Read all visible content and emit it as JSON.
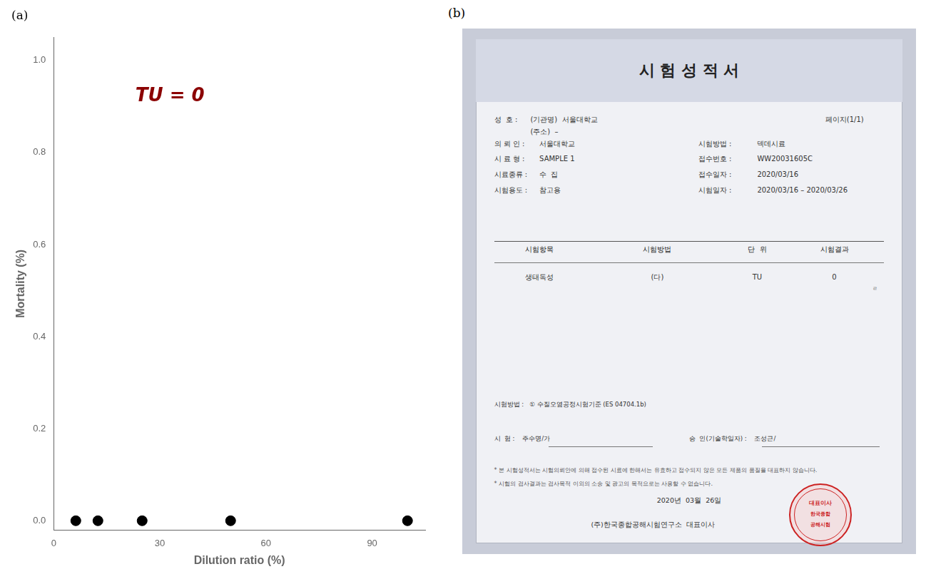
{
  "chart_data": [
    {
      "type": "scatter",
      "title": "(a)",
      "xlabel": "Dilution ratio (%)",
      "ylabel": "Mortality (%)",
      "x": [
        6.25,
        12.5,
        25,
        50,
        100
      ],
      "values": [
        0,
        0,
        0,
        0,
        0
      ],
      "color": "black",
      "xlim": [
        0,
        105
      ],
      "ylim": [
        -0.02,
        1.05
      ],
      "xticks": [
        0,
        30,
        60,
        90
      ],
      "yticks": [
        {
          "value": 0,
          "label": "0.0"
        },
        0.2,
        0.4,
        0.6,
        0.8,
        {
          "value": 1,
          "label": "1.0"
        }
      ],
      "grid": false,
      "annotations": [
        {
          "text": "TU = 0",
          "color": "#8B0000"
        }
      ]
    },
    {
      "type": "document",
      "title": "(b)",
      "subtitle": "시 험 성 적 서",
      "color": "#cc2222",
      "annotations": [
        "성  호 :",
        "(기관명)  서울대학교",
        "페이지(1/1)",
        "(주소)  –",
        "의 뢰 인 :",
        "서울대학교",
        "시험방법 :",
        "덱데시료",
        "시 료 형 :",
        "SAMPLE 1",
        "접수번호 :",
        "WW20031605C",
        "시료종류 :",
        "수  집",
        "접수일자 :",
        "2020/03/16",
        "시험용도 :",
        "참고용",
        "시험일자 :",
        "2020/03/16 – 2020/03/26",
        "시험항목",
        "시험방법",
        "단  위",
        "시험결과",
        "생태독성",
        "(다)",
        "TU",
        "0",
        "ㄹ",
        "시험방법 :   ① 수질오염공정시험기준 (ES 04704.1b)",
        "시  험 :    주수명/가",
        "승  인(기술학일자) :    조성근/",
        "* 본 시험성적서는 시험의뢰안에 의해 접수된 시료에 한해서는 유효하고 접수되지 않은 모든 제품의 품질을 대표하지 않습니다.",
        "* 시험의 검사결과는 검사목적 이외의 소송 및 광고의 목적으로는 사용할 수 없습니다.",
        "2020년  03월  26일",
        "(주)한국종합공해시험연구소  대표이사",
        "대표이사",
        "한국종합",
        "공해시험"
      ]
    }
  ]
}
